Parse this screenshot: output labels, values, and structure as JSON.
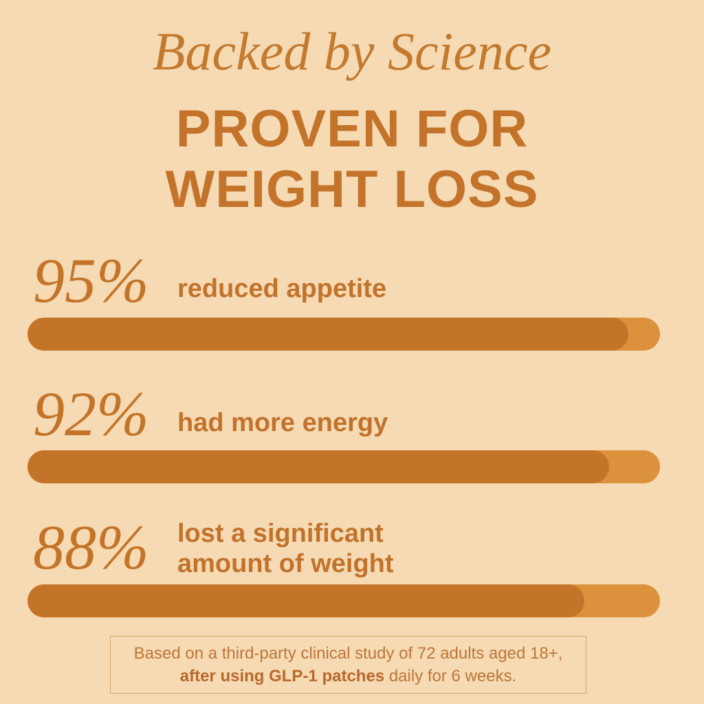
{
  "chart_data": {
    "type": "progress",
    "title": "Backed by Science",
    "subtitle_lines": [
      "PROVEN FOR",
      "WEIGHT LOSS"
    ],
    "categories": [
      "reduced appetite",
      "had more energy",
      "lost a significant amount of weight"
    ],
    "values": [
      95,
      92,
      88
    ],
    "value_labels": [
      "95%",
      "92%",
      "88%"
    ],
    "xlim": [
      0,
      100
    ],
    "color": "#c47428",
    "track_color": "#dc913c",
    "footnote": {
      "text_before": "Based on a third-party clinical study of 72 adults aged 18+,",
      "emphasis": "after using GLP-1 patches",
      "text_after": "daily for 6 weeks."
    }
  }
}
